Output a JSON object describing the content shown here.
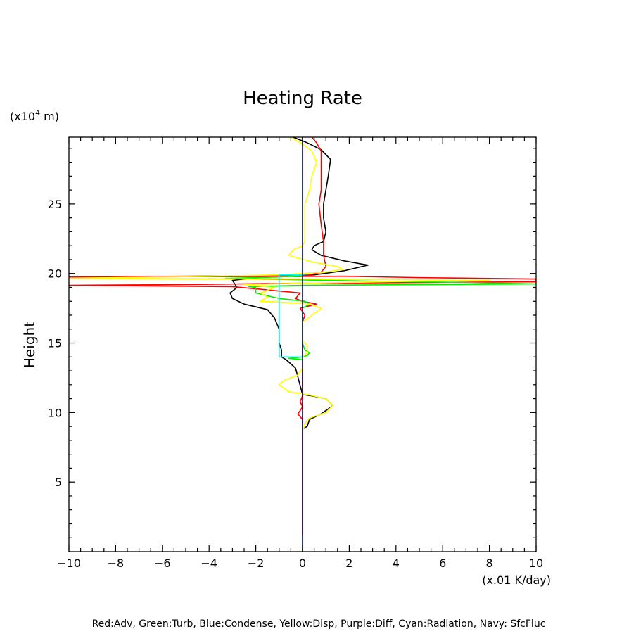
{
  "chart_data": {
    "type": "line",
    "title": "Heating Rate",
    "xlabel": "(x.01 K/day)",
    "ylabel": "Height",
    "yunit_prefix": "(x10",
    "yunit_exp": "4",
    "yunit_suffix": " m)",
    "xlim": [
      -10,
      10
    ],
    "ylim": [
      0,
      29.8
    ],
    "xticks": [
      -10,
      -8,
      -6,
      -4,
      -2,
      0,
      2,
      4,
      6,
      8,
      10
    ],
    "xtick_labels": [
      "−10",
      "−8",
      "−6",
      "−4",
      "−2",
      "0",
      "2",
      "4",
      "6",
      "8",
      "10"
    ],
    "yticks": [
      5,
      10,
      15,
      20,
      25
    ],
    "ytick_labels": [
      "5",
      "10",
      "15",
      "20",
      "25"
    ],
    "legend_text": "Red:Adv, Green:Turb, Blue:Condense, Yellow:Disp, Purple:Diff, Cyan:Radiation, Navy: SfcFluc",
    "grid": false,
    "series": [
      {
        "name": "Black",
        "color": "#000000",
        "points": [
          [
            0.0,
            8.8
          ],
          [
            0.2,
            9.0
          ],
          [
            0.3,
            9.5
          ],
          [
            0.8,
            9.9
          ],
          [
            1.3,
            10.5
          ],
          [
            1.0,
            11.0
          ],
          [
            0.4,
            11.2
          ],
          [
            0.0,
            11.3
          ],
          [
            -0.3,
            13.2
          ],
          [
            -0.7,
            13.8
          ],
          [
            -0.9,
            14.0
          ],
          [
            -0.9,
            14.5
          ],
          [
            -1.0,
            15.0
          ],
          [
            -1.0,
            16.0
          ],
          [
            -1.2,
            16.8
          ],
          [
            -1.5,
            17.4
          ],
          [
            -2.5,
            17.8
          ],
          [
            -3.0,
            18.2
          ],
          [
            -3.1,
            18.6
          ],
          [
            -2.8,
            19.0
          ],
          [
            -3.0,
            19.5
          ],
          [
            -2.0,
            19.7
          ],
          [
            0.5,
            19.9
          ],
          [
            1.8,
            20.2
          ],
          [
            2.8,
            20.6
          ],
          [
            1.8,
            20.9
          ],
          [
            0.8,
            21.3
          ],
          [
            0.4,
            21.7
          ],
          [
            0.5,
            22.0
          ],
          [
            0.9,
            22.3
          ],
          [
            1.0,
            23.0
          ],
          [
            0.9,
            24.0
          ],
          [
            0.9,
            25.0
          ],
          [
            1.0,
            26.0
          ],
          [
            1.1,
            27.0
          ],
          [
            1.2,
            28.2
          ],
          [
            0.8,
            28.9
          ],
          [
            0.2,
            29.4
          ],
          [
            -0.4,
            29.8
          ]
        ]
      },
      {
        "name": "Red",
        "color": "#ff0000",
        "points": [
          [
            0.0,
            1.2
          ],
          [
            0.0,
            6.0
          ],
          [
            0.0,
            8.5
          ],
          [
            0.0,
            9.5
          ],
          [
            -0.2,
            9.9
          ],
          [
            0.0,
            10.4
          ],
          [
            -0.1,
            10.8
          ],
          [
            0.0,
            11.2
          ],
          [
            0.0,
            13.0
          ],
          [
            0.0,
            16.5
          ],
          [
            0.1,
            17.0
          ],
          [
            -0.1,
            17.5
          ],
          [
            0.6,
            17.8
          ],
          [
            0.0,
            18.0
          ],
          [
            -0.3,
            18.2
          ],
          [
            -0.1,
            18.6
          ],
          [
            -3.0,
            19.05
          ],
          [
            -10.0,
            19.15
          ],
          [
            -5.0,
            19.2
          ],
          [
            0.0,
            19.3
          ],
          [
            10.0,
            19.4
          ],
          [
            10.0,
            19.6
          ],
          [
            5.0,
            19.7
          ],
          [
            1.8,
            19.8
          ],
          [
            -10.0,
            19.75
          ],
          [
            0.2,
            19.85
          ],
          [
            0.8,
            20.1
          ],
          [
            1.0,
            20.5
          ],
          [
            0.9,
            21.3
          ],
          [
            0.9,
            22.3
          ],
          [
            0.8,
            23.5
          ],
          [
            0.7,
            25.0
          ],
          [
            0.8,
            26.0
          ],
          [
            0.8,
            27.5
          ],
          [
            0.8,
            28.8
          ],
          [
            0.6,
            29.4
          ],
          [
            0.4,
            29.8
          ]
        ]
      },
      {
        "name": "Green",
        "color": "#00ee00",
        "points": [
          [
            0.0,
            13.6
          ],
          [
            0.0,
            13.8
          ],
          [
            -0.6,
            13.9
          ],
          [
            0.0,
            14.0
          ],
          [
            0.2,
            14.1
          ],
          [
            0.3,
            14.3
          ],
          [
            0.1,
            14.5
          ],
          [
            0.0,
            15.0
          ],
          [
            0.0,
            16.0
          ],
          [
            0.0,
            17.5
          ],
          [
            0.3,
            17.8
          ],
          [
            0.1,
            18.0
          ],
          [
            -1.0,
            18.2
          ],
          [
            -2.0,
            18.6
          ],
          [
            -2.0,
            19.0
          ],
          [
            -2.3,
            19.05
          ],
          [
            0.0,
            19.15
          ],
          [
            10.0,
            19.25
          ],
          [
            7.0,
            19.35
          ],
          [
            1.0,
            19.5
          ],
          [
            -3.3,
            19.65
          ],
          [
            -1.0,
            19.75
          ],
          [
            0.0,
            19.85
          ]
        ]
      },
      {
        "name": "Yellow",
        "color": "#ffff00",
        "points": [
          [
            0.0,
            8.6
          ],
          [
            0.1,
            9.2
          ],
          [
            0.3,
            9.6
          ],
          [
            1.0,
            10.0
          ],
          [
            1.3,
            10.5
          ],
          [
            1.0,
            11.0
          ],
          [
            0.2,
            11.3
          ],
          [
            -0.6,
            11.5
          ],
          [
            -1.0,
            12.0
          ],
          [
            -0.8,
            12.3
          ],
          [
            -0.2,
            12.7
          ],
          [
            0.0,
            13.2
          ],
          [
            0.0,
            14.0
          ],
          [
            0.2,
            14.3
          ],
          [
            0.2,
            14.8
          ],
          [
            0.0,
            15.2
          ],
          [
            0.0,
            16.5
          ],
          [
            0.4,
            17.0
          ],
          [
            0.8,
            17.5
          ],
          [
            0.3,
            17.8
          ],
          [
            -0.5,
            17.9
          ],
          [
            -1.8,
            18.0
          ],
          [
            -1.5,
            18.3
          ],
          [
            -1.8,
            18.6
          ],
          [
            -1.2,
            19.0
          ],
          [
            -2.5,
            19.2
          ],
          [
            0.0,
            19.3
          ],
          [
            5.0,
            19.45
          ],
          [
            8.0,
            19.5
          ],
          [
            0.8,
            19.6
          ],
          [
            -10.0,
            19.65
          ],
          [
            -4.0,
            19.8
          ],
          [
            -1.0,
            19.9
          ],
          [
            1.0,
            20.1
          ],
          [
            1.7,
            20.3
          ],
          [
            1.5,
            20.5
          ],
          [
            0.5,
            20.8
          ],
          [
            -0.6,
            21.3
          ],
          [
            -0.4,
            21.7
          ],
          [
            0.0,
            22.0
          ],
          [
            0.1,
            22.3
          ],
          [
            0.1,
            23.0
          ],
          [
            0.1,
            24.0
          ],
          [
            0.1,
            25.0
          ],
          [
            0.3,
            26.0
          ],
          [
            0.4,
            27.0
          ],
          [
            0.6,
            28.0
          ],
          [
            0.4,
            28.8
          ],
          [
            0.0,
            29.3
          ],
          [
            -0.5,
            29.8
          ]
        ]
      },
      {
        "name": "Cyan",
        "color": "#00ffff",
        "points": [
          [
            0.0,
            14.0
          ],
          [
            -1.0,
            14.0
          ],
          [
            -1.0,
            19.0
          ],
          [
            -1.0,
            19.9
          ],
          [
            0.0,
            19.9
          ]
        ]
      },
      {
        "name": "Navy",
        "color": "#000080",
        "points": [
          [
            0.0,
            0.0
          ],
          [
            0.0,
            29.8
          ]
        ]
      }
    ]
  }
}
